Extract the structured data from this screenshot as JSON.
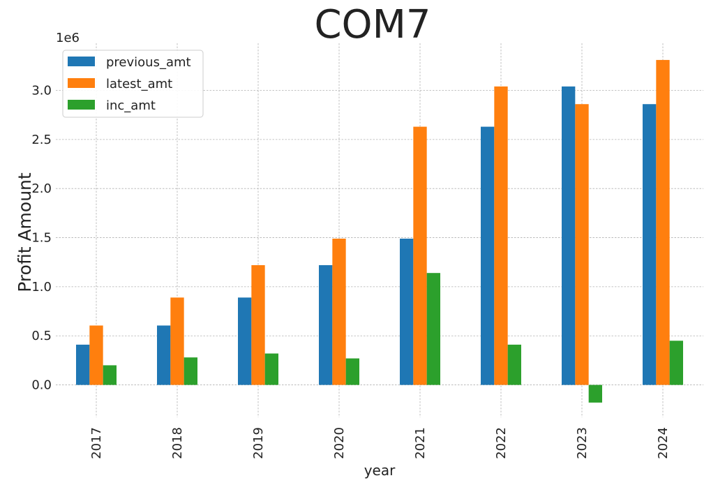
{
  "chart_data": {
    "type": "bar",
    "title": "COM7",
    "xlabel": "year",
    "ylabel": "Profit Amount",
    "y_offset_label": "1e6",
    "categories": [
      "2017",
      "2018",
      "2019",
      "2020",
      "2021",
      "2022",
      "2023",
      "2024"
    ],
    "series": [
      {
        "name": "previous_amt",
        "color": "#1f77b4",
        "values": [
          410000,
          605000,
          890000,
          1220000,
          1490000,
          2630000,
          3040000,
          2860000
        ]
      },
      {
        "name": "latest_amt",
        "color": "#ff7f0e",
        "values": [
          605000,
          890000,
          1220000,
          1490000,
          2630000,
          3040000,
          2860000,
          3310000
        ]
      },
      {
        "name": "inc_amt",
        "color": "#2ca02c",
        "values": [
          200000,
          280000,
          320000,
          270000,
          1140000,
          410000,
          -180000,
          450000
        ]
      }
    ],
    "ylim": [
      -0.33,
      3.48
    ],
    "yticks": [
      "0.0",
      "0.5",
      "1.0",
      "1.5",
      "2.0",
      "2.5",
      "3.0"
    ],
    "ytick_values": [
      0.0,
      0.5,
      1.0,
      1.5,
      2.0,
      2.5,
      3.0
    ],
    "y_scale": 1000000,
    "grid": true,
    "legend_position": "top-left"
  }
}
